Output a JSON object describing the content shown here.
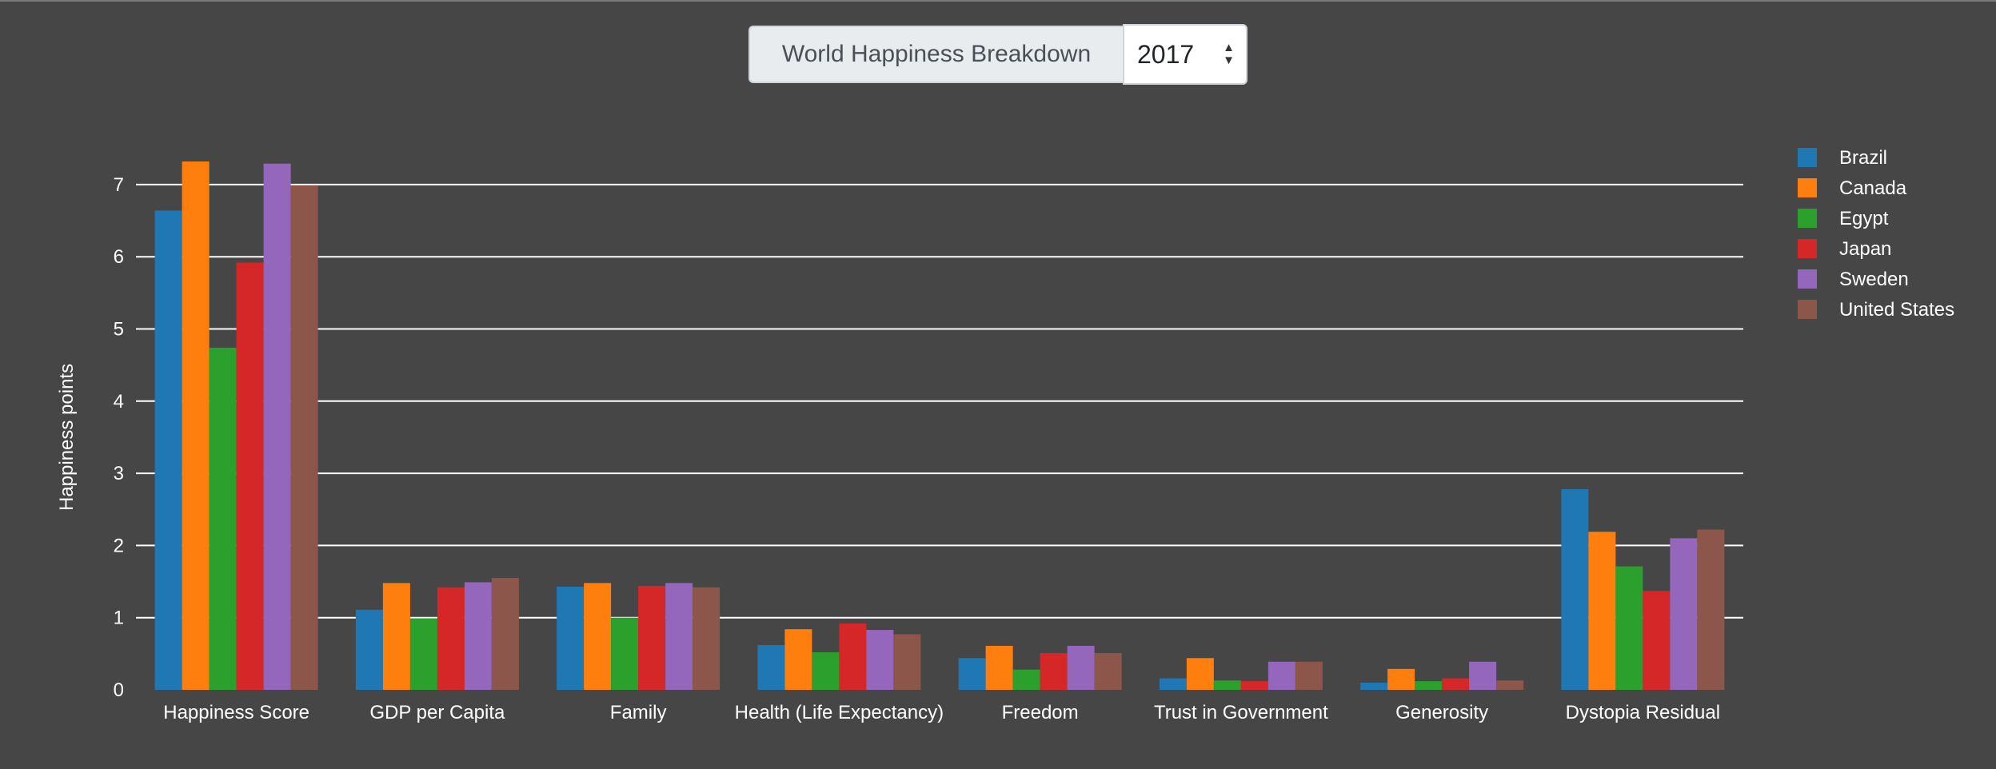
{
  "header": {
    "title": "World Happiness Breakdown",
    "year_selected": "2017",
    "up_arrow_icon": "▲",
    "down_arrow_icon": "▼"
  },
  "chart_data": {
    "type": "bar",
    "title": "",
    "xlabel": "",
    "ylabel": "Happiness points",
    "ylim": [
      0,
      7.8
    ],
    "yticks": [
      0,
      1,
      2,
      3,
      4,
      5,
      6,
      7
    ],
    "grid": true,
    "legend_position": "right",
    "categories": [
      "Happiness Score",
      "GDP per Capita",
      "Family",
      "Health (Life Expectancy)",
      "Freedom",
      "Trust in Government",
      "Generosity",
      "Dystopia Residual"
    ],
    "series": [
      {
        "name": "Brazil",
        "color": "#1f77b4",
        "values": [
          6.64,
          1.11,
          1.43,
          0.62,
          0.44,
          0.16,
          0.1,
          2.78
        ]
      },
      {
        "name": "Canada",
        "color": "#ff7f0e",
        "values": [
          7.32,
          1.48,
          1.48,
          0.84,
          0.61,
          0.44,
          0.29,
          2.19
        ]
      },
      {
        "name": "Egypt",
        "color": "#2ca02c",
        "values": [
          4.74,
          0.99,
          1.0,
          0.52,
          0.28,
          0.13,
          0.12,
          1.71
        ]
      },
      {
        "name": "Japan",
        "color": "#d62728",
        "values": [
          5.92,
          1.42,
          1.44,
          0.92,
          0.51,
          0.12,
          0.16,
          1.37
        ]
      },
      {
        "name": "Sweden",
        "color": "#9467bd",
        "values": [
          7.29,
          1.49,
          1.48,
          0.83,
          0.61,
          0.39,
          0.39,
          2.1
        ]
      },
      {
        "name": "United States",
        "color": "#8c564b",
        "values": [
          6.99,
          1.55,
          1.42,
          0.77,
          0.51,
          0.39,
          0.13,
          2.22
        ]
      }
    ]
  }
}
